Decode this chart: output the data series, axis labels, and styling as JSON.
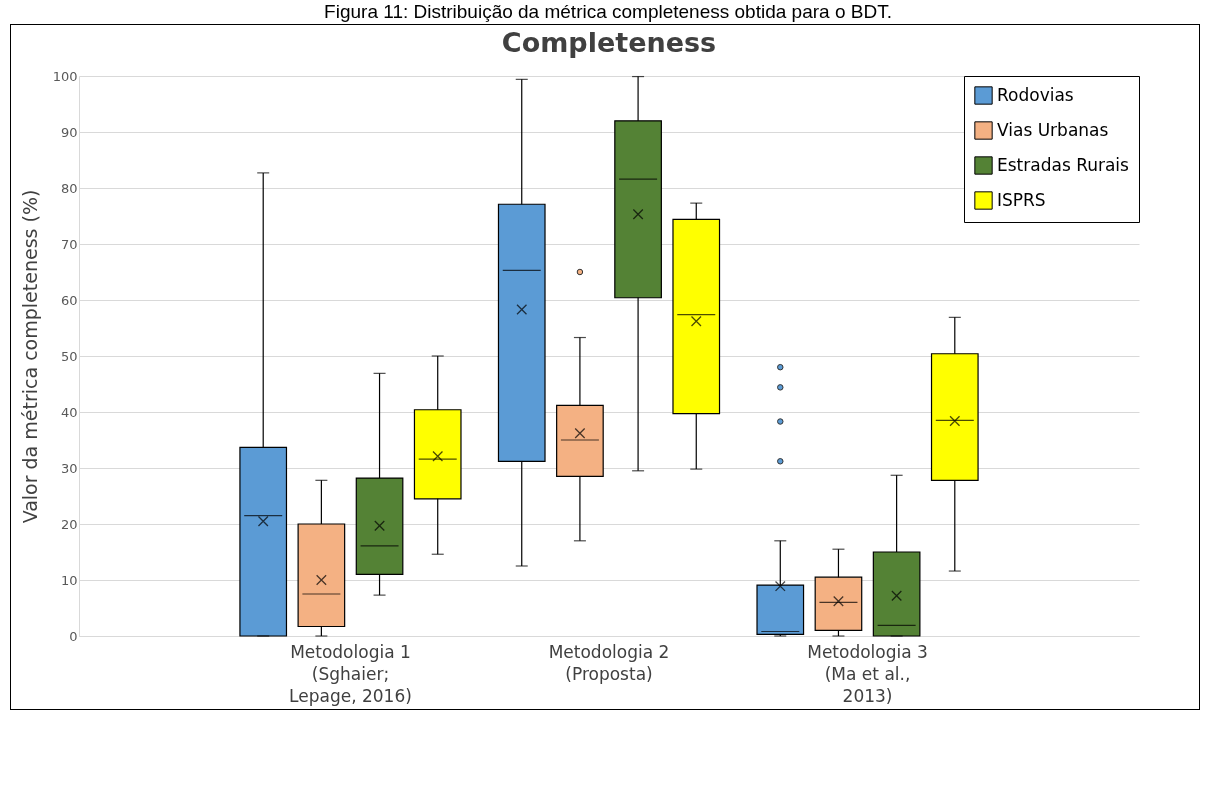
{
  "chart_data": {
    "type": "box",
    "title": "Completeness",
    "ylabel": "Valor da métrica completeness (%)",
    "annotations": [
      "Figura 11: Distribuição da métrica completeness obtida para o BDT."
    ],
    "categories": [
      "Metodologia 1\n(Sghaier;\nLepage, 2016)",
      "Metodologia 2\n(Proposta)",
      "Metodologia 3\n(Ma et al.,\n2013)"
    ],
    "ylim": [
      0,
      100
    ],
    "yticks": [
      0,
      10,
      20,
      30,
      40,
      50,
      60,
      70,
      80,
      90,
      100
    ],
    "grid": "y",
    "legend": "top right",
    "series": [
      {
        "name": "Rodovias",
        "color": "#5b9bd5",
        "boxes": [
          {
            "low": 0,
            "q1": 0,
            "median": 21.5,
            "q3": 33.7,
            "high": 82.7,
            "mean": 20.5
          },
          {
            "low": 12.5,
            "q1": 31.2,
            "median": 65.3,
            "q3": 77.1,
            "high": 99.4,
            "mean": 58.3
          },
          {
            "low": 0,
            "q1": 0.3,
            "median": 0.8,
            "q3": 9.1,
            "high": 17,
            "mean": 8.9,
            "outliers": [
              31.2,
              38.3,
              44.4,
              48
            ]
          }
        ]
      },
      {
        "name": "Vias Urbanas",
        "color": "#f4b183",
        "boxes": [
          {
            "low": 0,
            "q1": 1.7,
            "median": 7.5,
            "q3": 20,
            "high": 27.8,
            "mean": 10
          },
          {
            "low": 17,
            "q1": 28.5,
            "median": 35,
            "q3": 41.2,
            "high": 53.3,
            "mean": 36.2,
            "outliers": [
              65
            ]
          },
          {
            "low": 0,
            "q1": 1,
            "median": 6,
            "q3": 10.5,
            "high": 15.5,
            "mean": 6.2
          }
        ]
      },
      {
        "name": "Estradas Rurais",
        "color": "#548235",
        "boxes": [
          {
            "low": 7.3,
            "q1": 11,
            "median": 16.1,
            "q3": 28.2,
            "high": 46.9,
            "mean": 19.7
          },
          {
            "low": 29.5,
            "q1": 60.4,
            "median": 81.6,
            "q3": 92,
            "high": 99.9,
            "mean": 75.3
          },
          {
            "low": 0,
            "q1": 0,
            "median": 1.9,
            "q3": 15,
            "high": 28.7,
            "mean": 7.2
          }
        ]
      },
      {
        "name": "ISPRS",
        "color": "#ffff00",
        "boxes": [
          {
            "low": 14.6,
            "q1": 24.5,
            "median": 31.6,
            "q3": 40.4,
            "high": 50,
            "mean": 32.1
          },
          {
            "low": 29.8,
            "q1": 39.7,
            "median": 57.4,
            "q3": 74.4,
            "high": 77.3,
            "mean": 56.2
          },
          {
            "low": 11.6,
            "q1": 27.8,
            "median": 38.5,
            "q3": 50.4,
            "high": 56.9,
            "mean": 38.4
          }
        ]
      }
    ]
  }
}
